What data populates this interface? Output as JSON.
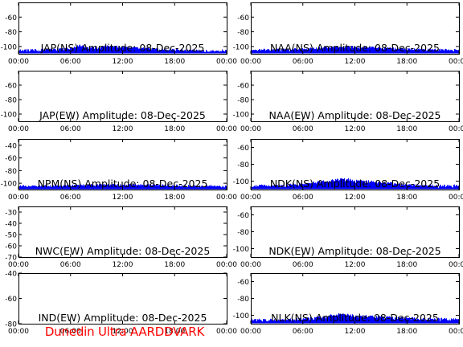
{
  "footer": "Dunedin Ultra AARDDVARK",
  "colors": {
    "signal": "#0000ff",
    "axis": "#000000",
    "footer": "#ff0000",
    "background": "#ffffff"
  },
  "chart_data": [
    {
      "type": "area",
      "title": "JAP(NS) Amplitude: 08-Dec-2025",
      "xlabel": "",
      "ylabel": "",
      "xlim": [
        "00:00",
        "24:00"
      ],
      "ylim": [
        -110,
        -40
      ],
      "xticks": [
        "00:00",
        "06:00",
        "12:00",
        "18:00",
        "00:00"
      ],
      "yticks": [
        -100,
        -80,
        -60
      ],
      "series": [
        {
          "x": [
            0,
            3,
            6,
            7,
            8,
            9,
            10,
            12,
            14,
            16,
            18,
            21,
            24
          ],
          "values": [
            -104,
            -103,
            -101,
            -97,
            -100,
            -100,
            -98,
            -99,
            -101,
            -102,
            -103,
            -104,
            -104
          ]
        }
      ]
    },
    {
      "type": "area",
      "title": "NAA(NS) Amplitude: 08-Dec-2025",
      "xlabel": "",
      "ylabel": "",
      "xlim": [
        "00:00",
        "24:00"
      ],
      "ylim": [
        -110,
        -40
      ],
      "xticks": [
        "00:00",
        "06:00",
        "12:00",
        "18:00",
        "00:00"
      ],
      "yticks": [
        -100,
        -80,
        -60
      ],
      "series": [
        {
          "x": [
            0,
            3,
            6,
            8,
            10,
            12,
            14,
            16,
            18,
            21,
            24
          ],
          "values": [
            -103,
            -103,
            -102,
            -100,
            -99,
            -99,
            -100,
            -101,
            -102,
            -103,
            -103
          ]
        }
      ]
    },
    {
      "type": "area",
      "title": "JAP(EW) Amplitude: 08-Dec-2025",
      "xlabel": "",
      "ylabel": "",
      "xlim": [
        "00:00",
        "24:00"
      ],
      "ylim": [
        -110,
        -40
      ],
      "xticks": [
        "00:00",
        "06:00",
        "12:00",
        "18:00",
        "00:00"
      ],
      "yticks": [
        -100,
        -80,
        -60
      ],
      "series": []
    },
    {
      "type": "area",
      "title": "NAA(EW) Amplitude: 08-Dec-2025",
      "xlabel": "",
      "ylabel": "",
      "xlim": [
        "00:00",
        "24:00"
      ],
      "ylim": [
        -110,
        -40
      ],
      "xticks": [
        "00:00",
        "06:00",
        "12:00",
        "18:00",
        "00:00"
      ],
      "yticks": [
        -100,
        -80,
        -60
      ],
      "series": []
    },
    {
      "type": "area",
      "title": "NPM(NS) Amplitude: 08-Dec-2025",
      "xlabel": "",
      "ylabel": "",
      "xlim": [
        "00:00",
        "24:00"
      ],
      "ylim": [
        -110,
        -30
      ],
      "xticks": [
        "00:00",
        "06:00",
        "12:00",
        "18:00",
        "00:00"
      ],
      "yticks": [
        -100,
        -80,
        -60,
        -40
      ],
      "series": [
        {
          "x": [
            0,
            3,
            6,
            9,
            12,
            15,
            18,
            21,
            24
          ],
          "values": [
            -103,
            -103,
            -102,
            -101,
            -101,
            -101,
            -102,
            -103,
            -103
          ]
        }
      ]
    },
    {
      "type": "area",
      "title": "NDK(NS) Amplitude: 08-Dec-2025",
      "xlabel": "",
      "ylabel": "",
      "xlim": [
        "00:00",
        "24:00"
      ],
      "ylim": [
        -110,
        -50
      ],
      "xticks": [
        "00:00",
        "06:00",
        "12:00",
        "18:00",
        "00:00"
      ],
      "yticks": [
        -100,
        -80,
        -60
      ],
      "series": [
        {
          "x": [
            0,
            3,
            6,
            8,
            10,
            11,
            12,
            14,
            16,
            18,
            21,
            24
          ],
          "values": [
            -104,
            -104,
            -102,
            -99,
            -97,
            -96,
            -98,
            -99,
            -101,
            -103,
            -104,
            -104
          ]
        }
      ]
    },
    {
      "type": "area",
      "title": "NWC(EW) Amplitude: 08-Dec-2025",
      "xlabel": "",
      "ylabel": "",
      "xlim": [
        "00:00",
        "24:00"
      ],
      "ylim": [
        -70,
        -25
      ],
      "xticks": [
        "00:00",
        "06:00",
        "12:00",
        "18:00",
        "00:00"
      ],
      "yticks": [
        -70,
        -60,
        -50,
        -40,
        -30
      ],
      "series": []
    },
    {
      "type": "area",
      "title": "NDK(EW) Amplitude: 08-Dec-2025",
      "xlabel": "",
      "ylabel": "",
      "xlim": [
        "00:00",
        "24:00"
      ],
      "ylim": [
        -110,
        -50
      ],
      "xticks": [
        "00:00",
        "06:00",
        "12:00",
        "18:00",
        "00:00"
      ],
      "yticks": [
        -100,
        -80,
        -60
      ],
      "series": []
    },
    {
      "type": "area",
      "title": "IND(EW) Amplitude: 08-Dec-2025",
      "xlabel": "",
      "ylabel": "",
      "xlim": [
        "00:00",
        "24:00"
      ],
      "ylim": [
        -80,
        -40
      ],
      "xticks": [
        "00:00",
        "06:00",
        "12:00",
        "18:00",
        "00:00"
      ],
      "yticks": [
        -80,
        -60,
        -40
      ],
      "series": []
    },
    {
      "type": "area",
      "title": "NLK(NS) Amplitude: 08-Dec-2025",
      "xlabel": "",
      "ylabel": "",
      "xlim": [
        "00:00",
        "24:00"
      ],
      "ylim": [
        -110,
        -50
      ],
      "xticks": [
        "00:00",
        "06:00",
        "12:00",
        "18:00",
        "00:00"
      ],
      "yticks": [
        -100,
        -80,
        -60
      ],
      "series": [
        {
          "x": [
            0,
            3,
            6,
            8,
            9,
            10,
            11,
            12,
            14,
            16,
            18,
            21,
            24
          ],
          "values": [
            -104,
            -104,
            -103,
            -101,
            -99,
            -97,
            -98,
            -99,
            -100,
            -101,
            -102,
            -103,
            -103
          ]
        }
      ]
    }
  ]
}
